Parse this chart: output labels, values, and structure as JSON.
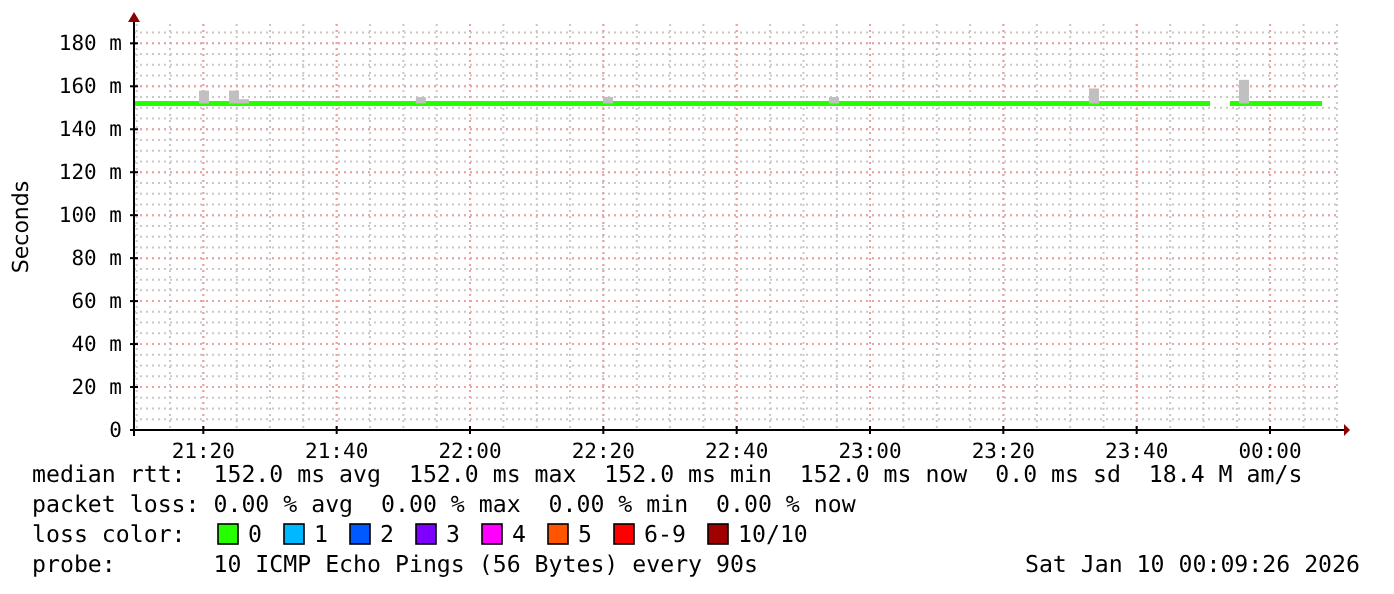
{
  "chart_data": {
    "type": "line",
    "ylabel": "Seconds",
    "xlim": [
      21.16,
      24.17
    ],
    "xticks": [
      {
        "value": 21.3333,
        "label": "21:20"
      },
      {
        "value": 21.6667,
        "label": "21:40"
      },
      {
        "value": 22,
        "label": "22:00"
      },
      {
        "value": 22.3333,
        "label": "22:20"
      },
      {
        "value": 22.6667,
        "label": "22:40"
      },
      {
        "value": 23,
        "label": "23:00"
      },
      {
        "value": 23.3333,
        "label": "23:20"
      },
      {
        "value": 23.6667,
        "label": "23:40"
      },
      {
        "value": 24,
        "label": "00:00"
      }
    ],
    "ylim": [
      0,
      189
    ],
    "yticks": [
      0,
      {
        "value": 20,
        "label": "20 m"
      },
      {
        "value": 40,
        "label": "40 m"
      },
      {
        "value": 60,
        "label": "60 m"
      },
      {
        "value": 80,
        "label": "80 m"
      },
      {
        "value": 100,
        "label": "100 m"
      },
      {
        "value": 120,
        "label": "120 m"
      },
      {
        "value": 140,
        "label": "140 m"
      },
      {
        "value": 160,
        "label": "160 m"
      },
      {
        "value": 180,
        "label": "180 m"
      }
    ],
    "grid": true,
    "legend": "bottom",
    "legend_title": "loss color:",
    "series": [
      {
        "type": "bar",
        "color": "#c0c0c0",
        "x": [
          21.335,
          21.41,
          21.435,
          21.877,
          22.345,
          22.91,
          23.56,
          23.935
        ],
        "base": [
          152,
          152,
          152,
          152,
          152,
          152,
          152,
          152
        ],
        "values": [
          6,
          6,
          2,
          3,
          3,
          3,
          7,
          11
        ]
      },
      {
        "name": "0",
        "color": "#26ff00",
        "x": [
          21.16,
          23.85,
          23.87,
          23.9,
          24.13
        ],
        "values": [
          152,
          152,
          null,
          152,
          152
        ]
      },
      {
        "name": "1",
        "color": "#00b8ff"
      },
      {
        "name": "2",
        "color": "#0059ff"
      },
      {
        "name": "3",
        "color": "#7e00ff"
      },
      {
        "name": "4",
        "color": "#ff00ff"
      },
      {
        "name": "5",
        "color": "#ff5500"
      },
      {
        "name": "6-9",
        "color": "#ff0000"
      },
      {
        "name": "10/10",
        "color": "#a10000"
      }
    ],
    "annotations": [
      "median rtt:  152.0 ms avg  152.0 ms max  152.0 ms min  152.0 ms now  0.0 ms sd  18.4 M am/s",
      "packet loss: 0.00 % avg  0.00 % max  0.00 % min  0.00 % now",
      "probe:       10 ICMP Echo Pings (56 Bytes) every 90s",
      "Sat Jan 10 00:09:26 2026"
    ]
  }
}
